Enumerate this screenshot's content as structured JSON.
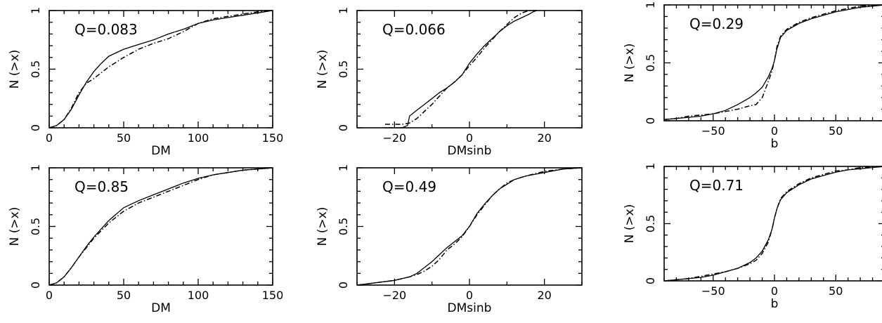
{
  "chart_data": [
    {
      "type": "line",
      "panel": "top-left",
      "annotation": "Q=0.083",
      "xlabel": "DM",
      "ylabel": "N (>x)",
      "xlim": [
        0,
        150
      ],
      "ylim": [
        0,
        1
      ],
      "xticks": [
        "0",
        "50",
        "100",
        "150"
      ],
      "yticks": [
        "0",
        "0.5",
        "1"
      ],
      "series": [
        {
          "style": "solid",
          "x": [
            0,
            5,
            10,
            15,
            20,
            25,
            30,
            35,
            40,
            50,
            60,
            70,
            80,
            90,
            100,
            110,
            120,
            130,
            140,
            150
          ],
          "y": [
            0.0,
            0.02,
            0.07,
            0.16,
            0.28,
            0.39,
            0.48,
            0.55,
            0.61,
            0.67,
            0.71,
            0.75,
            0.8,
            0.84,
            0.89,
            0.92,
            0.94,
            0.96,
            0.98,
            1.0
          ]
        },
        {
          "style": "dash-dot",
          "x": [
            0,
            5,
            10,
            15,
            20,
            25,
            30,
            35,
            40,
            50,
            60,
            70,
            80,
            90,
            100,
            110,
            120,
            130,
            140,
            150
          ],
          "y": [
            0.0,
            0.02,
            0.07,
            0.17,
            0.3,
            0.38,
            0.42,
            0.47,
            0.52,
            0.6,
            0.67,
            0.72,
            0.76,
            0.82,
            0.89,
            0.93,
            0.95,
            0.97,
            0.99,
            1.0
          ]
        }
      ]
    },
    {
      "type": "line",
      "panel": "top-middle",
      "annotation": "Q=0.066",
      "xlabel": "DMsinb",
      "ylabel": "N (>x)",
      "xlim": [
        -30,
        30
      ],
      "ylim": [
        0,
        1
      ],
      "xticks": [
        "-20",
        "0",
        "20"
      ],
      "yticks": [
        "0",
        "0.5",
        "1"
      ],
      "series": [
        {
          "style": "solid",
          "x": [
            -22.5,
            -18,
            -16.5,
            -16,
            -14,
            -12,
            -10,
            -8,
            -6,
            -4,
            -2,
            0,
            2,
            4,
            6,
            8,
            10,
            12,
            14,
            16,
            17,
            18
          ],
          "y": [
            0.0,
            0.0,
            0.02,
            0.1,
            0.15,
            0.2,
            0.25,
            0.3,
            0.34,
            0.39,
            0.45,
            0.55,
            0.63,
            0.7,
            0.76,
            0.82,
            0.87,
            0.91,
            0.94,
            0.97,
            0.99,
            1.0
          ]
        },
        {
          "style": "dash-dot",
          "x": [
            -22.5,
            -18,
            -16,
            -14,
            -12,
            -10,
            -8,
            -6,
            -4,
            -2,
            0,
            2,
            4,
            6,
            8,
            10,
            12,
            14,
            16,
            18
          ],
          "y": [
            0.03,
            0.03,
            0.04,
            0.08,
            0.14,
            0.2,
            0.27,
            0.34,
            0.39,
            0.45,
            0.53,
            0.6,
            0.68,
            0.75,
            0.82,
            0.88,
            0.94,
            0.98,
            1.0,
            1.0
          ]
        }
      ]
    },
    {
      "type": "line",
      "panel": "top-right",
      "annotation": "Q=0.29",
      "xlabel": "b",
      "ylabel": "N (>x)",
      "xlim": [
        -90,
        90
      ],
      "ylim": [
        0,
        1
      ],
      "xticks": [
        "-50",
        "0",
        "50"
      ],
      "yticks": [
        "0",
        "0.5",
        "1"
      ],
      "series": [
        {
          "style": "solid",
          "x": [
            -90,
            -80,
            -70,
            -60,
            -50,
            -40,
            -30,
            -20,
            -15,
            -10,
            -5,
            -2,
            0,
            2,
            5,
            10,
            20,
            30,
            40,
            50,
            60,
            70,
            80,
            90
          ],
          "y": [
            0.01,
            0.02,
            0.03,
            0.04,
            0.06,
            0.09,
            0.14,
            0.2,
            0.24,
            0.29,
            0.38,
            0.45,
            0.52,
            0.62,
            0.72,
            0.78,
            0.84,
            0.88,
            0.91,
            0.94,
            0.96,
            0.98,
            0.99,
            1.0
          ]
        },
        {
          "style": "dash-dot",
          "x": [
            -90,
            -80,
            -70,
            -60,
            -50,
            -40,
            -30,
            -20,
            -15,
            -10,
            -5,
            -2,
            0,
            2,
            5,
            10,
            20,
            30,
            40,
            50,
            60,
            70,
            80,
            90
          ],
          "y": [
            0.01,
            0.02,
            0.04,
            0.05,
            0.06,
            0.08,
            0.1,
            0.13,
            0.14,
            0.2,
            0.34,
            0.43,
            0.52,
            0.64,
            0.73,
            0.79,
            0.85,
            0.89,
            0.92,
            0.95,
            0.97,
            0.99,
            0.995,
            1.0
          ]
        }
      ]
    },
    {
      "type": "line",
      "panel": "bottom-left",
      "annotation": "Q=0.85",
      "xlabel": "DM",
      "ylabel": "N (>x)",
      "xlim": [
        0,
        150
      ],
      "ylim": [
        0,
        1
      ],
      "xticks": [
        "0",
        "50",
        "100",
        "150"
      ],
      "yticks": [
        "0",
        "0.5",
        "1"
      ],
      "series": [
        {
          "style": "solid",
          "x": [
            0,
            5,
            10,
            15,
            20,
            25,
            30,
            40,
            50,
            60,
            70,
            80,
            90,
            100,
            110,
            120,
            130,
            140,
            150
          ],
          "y": [
            0.0,
            0.02,
            0.07,
            0.15,
            0.24,
            0.33,
            0.41,
            0.55,
            0.66,
            0.72,
            0.77,
            0.82,
            0.87,
            0.91,
            0.94,
            0.96,
            0.98,
            0.99,
            1.0
          ]
        },
        {
          "style": "dash-dot",
          "x": [
            0,
            5,
            10,
            15,
            20,
            25,
            30,
            40,
            50,
            60,
            70,
            80,
            90,
            100,
            110,
            120,
            130,
            140,
            150
          ],
          "y": [
            0.0,
            0.02,
            0.07,
            0.15,
            0.24,
            0.32,
            0.4,
            0.53,
            0.63,
            0.7,
            0.75,
            0.8,
            0.85,
            0.9,
            0.94,
            0.96,
            0.98,
            0.99,
            1.0
          ]
        }
      ]
    },
    {
      "type": "line",
      "panel": "bottom-middle",
      "annotation": "Q=0.49",
      "xlabel": "DMsinb",
      "ylabel": "N (>x)",
      "xlim": [
        -30,
        30
      ],
      "ylim": [
        0,
        1
      ],
      "xticks": [
        "-20",
        "0",
        "20"
      ],
      "yticks": [
        "0",
        "0.5",
        "1"
      ],
      "series": [
        {
          "style": "solid",
          "x": [
            -30,
            -25,
            -20,
            -16,
            -14,
            -12,
            -10,
            -8,
            -6,
            -4,
            -2,
            0,
            2,
            4,
            6,
            8,
            10,
            12,
            15,
            20,
            25,
            30
          ],
          "y": [
            0.0,
            0.02,
            0.04,
            0.07,
            0.1,
            0.15,
            0.2,
            0.26,
            0.32,
            0.37,
            0.42,
            0.5,
            0.61,
            0.69,
            0.76,
            0.82,
            0.86,
            0.9,
            0.93,
            0.96,
            0.99,
            1.0
          ]
        },
        {
          "style": "dash-dot",
          "x": [
            -30,
            -25,
            -20,
            -16,
            -14,
            -12,
            -10,
            -8,
            -6,
            -4,
            -2,
            0,
            2,
            4,
            6,
            8,
            10,
            12,
            15,
            20,
            25,
            30
          ],
          "y": [
            0.0,
            0.02,
            0.04,
            0.07,
            0.09,
            0.12,
            0.16,
            0.22,
            0.3,
            0.35,
            0.41,
            0.5,
            0.6,
            0.68,
            0.76,
            0.82,
            0.87,
            0.9,
            0.93,
            0.97,
            0.99,
            1.0
          ]
        }
      ]
    },
    {
      "type": "line",
      "panel": "bottom-right",
      "annotation": "Q=0.71",
      "xlabel": "b",
      "ylabel": "N (>x)",
      "xlim": [
        -90,
        90
      ],
      "ylim": [
        0,
        1
      ],
      "xticks": [
        "-50",
        "0",
        "50"
      ],
      "yticks": [
        "0",
        "0.5",
        "1"
      ],
      "series": [
        {
          "style": "solid",
          "x": [
            -90,
            -80,
            -70,
            -60,
            -50,
            -40,
            -30,
            -20,
            -15,
            -10,
            -5,
            -2,
            0,
            2,
            5,
            10,
            20,
            30,
            40,
            50,
            60,
            70,
            80,
            90
          ],
          "y": [
            0.0,
            0.01,
            0.02,
            0.03,
            0.05,
            0.08,
            0.11,
            0.16,
            0.2,
            0.26,
            0.36,
            0.45,
            0.55,
            0.63,
            0.71,
            0.77,
            0.84,
            0.89,
            0.92,
            0.95,
            0.97,
            0.98,
            0.99,
            1.0
          ]
        },
        {
          "style": "dash-dot",
          "x": [
            -90,
            -80,
            -70,
            -60,
            -50,
            -40,
            -30,
            -20,
            -15,
            -10,
            -5,
            -2,
            0,
            2,
            5,
            10,
            20,
            30,
            40,
            50,
            60,
            70,
            80,
            90
          ],
          "y": [
            0.0,
            0.01,
            0.02,
            0.04,
            0.06,
            0.08,
            0.11,
            0.15,
            0.18,
            0.24,
            0.34,
            0.45,
            0.55,
            0.63,
            0.72,
            0.78,
            0.85,
            0.9,
            0.93,
            0.96,
            0.97,
            0.99,
            0.995,
            1.0
          ]
        }
      ]
    }
  ]
}
